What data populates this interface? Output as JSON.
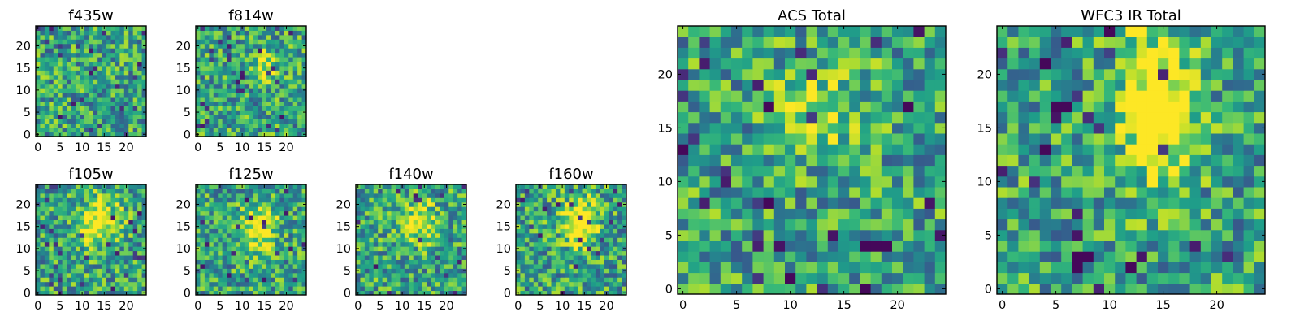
{
  "chart_data": [
    {
      "id": "f435w",
      "type": "heatmap",
      "title": "f435w",
      "size": [
        25,
        25
      ],
      "colormap": "viridis",
      "xticks": [
        "0",
        "5",
        "10",
        "15",
        "20"
      ],
      "yticks": [
        "0",
        "5",
        "10",
        "15",
        "20"
      ],
      "features": [],
      "description_mode": "noise"
    },
    {
      "id": "f814w",
      "type": "heatmap",
      "title": "f814w",
      "size": [
        25,
        25
      ],
      "colormap": "viridis",
      "xticks": [
        "0",
        "5",
        "10",
        "15",
        "20"
      ],
      "yticks": [
        "0",
        "5",
        "10",
        "15",
        "20"
      ],
      "features": [
        {
          "x": 15,
          "y": 16,
          "amplitude": 0.35,
          "sigma_x": 1.8,
          "sigma_y": 2.5
        }
      ]
    },
    {
      "id": "f105w",
      "type": "heatmap",
      "title": "f105w",
      "size": [
        25,
        25
      ],
      "colormap": "viridis",
      "xticks": [
        "0",
        "5",
        "10",
        "15",
        "20"
      ],
      "yticks": [
        "0",
        "5",
        "10",
        "15",
        "20"
      ],
      "features": [
        {
          "x": 14,
          "y": 16,
          "amplitude": 0.55,
          "sigma_x": 3.0,
          "sigma_y": 3.6
        }
      ]
    },
    {
      "id": "f125w",
      "type": "heatmap",
      "title": "f125w",
      "size": [
        25,
        25
      ],
      "colormap": "viridis",
      "xticks": [
        "0",
        "5",
        "10",
        "15",
        "20"
      ],
      "yticks": [
        "0",
        "5",
        "10",
        "15",
        "20"
      ],
      "features": [
        {
          "x": 14,
          "y": 15,
          "amplitude": 0.5,
          "sigma_x": 2.6,
          "sigma_y": 3.6
        }
      ]
    },
    {
      "id": "f140w",
      "type": "heatmap",
      "title": "f140w",
      "size": [
        25,
        25
      ],
      "colormap": "viridis",
      "xticks": [
        "0",
        "5",
        "10",
        "15",
        "20"
      ],
      "yticks": [
        "0",
        "5",
        "10",
        "15",
        "20"
      ],
      "features": [
        {
          "x": 14,
          "y": 16,
          "amplitude": 0.45,
          "sigma_x": 2.6,
          "sigma_y": 3.2
        }
      ]
    },
    {
      "id": "f160w",
      "type": "heatmap",
      "title": "f160w",
      "size": [
        25,
        25
      ],
      "colormap": "viridis",
      "xticks": [
        "0",
        "5",
        "10",
        "15",
        "20"
      ],
      "yticks": [
        "0",
        "5",
        "10",
        "15",
        "20"
      ],
      "features": [
        {
          "x": 14,
          "y": 16,
          "amplitude": 0.6,
          "sigma_x": 2.6,
          "sigma_y": 4.0
        }
      ]
    },
    {
      "id": "acs",
      "type": "heatmap",
      "title": "ACS Total",
      "size": [
        25,
        25
      ],
      "colormap": "viridis",
      "xticks": [
        "0",
        "5",
        "10",
        "15",
        "20"
      ],
      "yticks": [
        "0",
        "5",
        "10",
        "15",
        "20"
      ],
      "features": [
        {
          "x": 13,
          "y": 17,
          "amplitude": 0.25,
          "sigma_x": 3.0,
          "sigma_y": 3.0
        }
      ],
      "dark_pixels": [
        [
          0,
          13
        ],
        [
          8,
          8
        ],
        [
          8,
          17
        ],
        [
          10,
          1
        ],
        [
          17,
          4
        ],
        [
          18,
          4
        ],
        [
          19,
          4
        ],
        [
          17,
          0
        ],
        [
          21,
          17
        ]
      ]
    },
    {
      "id": "wfc3",
      "type": "heatmap",
      "title": "WFC3 IR Total",
      "size": [
        25,
        25
      ],
      "colormap": "viridis",
      "xticks": [
        "0",
        "5",
        "10",
        "15",
        "20"
      ],
      "yticks": [
        "0",
        "5",
        "10",
        "15",
        "20"
      ],
      "features": [
        {
          "x": 14.5,
          "y": 17,
          "amplitude": 0.7,
          "sigma_x": 2.3,
          "sigma_y": 4.5
        }
      ],
      "dark_pixels": [
        [
          5,
          17
        ],
        [
          6,
          17
        ],
        [
          4,
          21
        ],
        [
          7,
          3
        ],
        [
          8,
          3
        ],
        [
          7,
          2
        ],
        [
          12,
          2
        ],
        [
          10,
          24
        ],
        [
          4,
          13
        ]
      ]
    }
  ]
}
